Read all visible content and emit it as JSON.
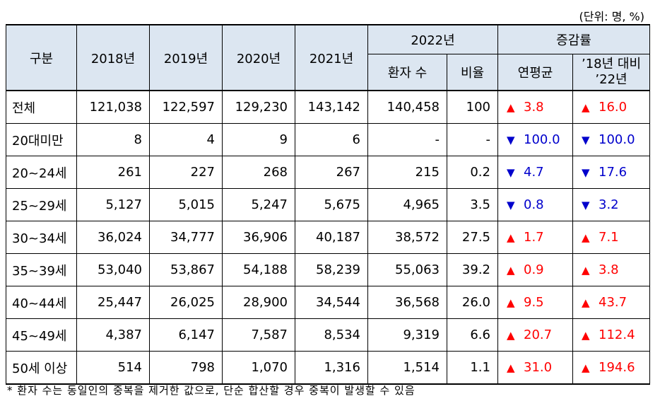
{
  "unit_note": "(단위: 명, %)",
  "header": {
    "category": "구분",
    "years": [
      "2018년",
      "2019년",
      "2020년",
      "2021년"
    ],
    "year_2022": "2022년",
    "patients": "환자 수",
    "ratio": "비율",
    "change": "증감률",
    "annual_avg": "연평균",
    "vs_line1": "’18년 대비",
    "vs_line2": "’22년"
  },
  "rows": [
    {
      "label": "전체",
      "y2018": "121,038",
      "y2019": "122,597",
      "y2020": "129,230",
      "y2021": "143,142",
      "y2022": "140,458",
      "ratio": "100",
      "avg_dir": "up",
      "avg": "3.8",
      "vs_dir": "up",
      "vs": "16.0"
    },
    {
      "label": "20대미만",
      "y2018": "8",
      "y2019": "4",
      "y2020": "9",
      "y2021": "6",
      "y2022": "-",
      "ratio": "-",
      "avg_dir": "down",
      "avg": "100.0",
      "vs_dir": "down",
      "vs": "100.0"
    },
    {
      "label": "20~24세",
      "y2018": "261",
      "y2019": "227",
      "y2020": "268",
      "y2021": "267",
      "y2022": "215",
      "ratio": "0.2",
      "avg_dir": "down",
      "avg": "4.7",
      "vs_dir": "down",
      "vs": "17.6"
    },
    {
      "label": "25~29세",
      "y2018": "5,127",
      "y2019": "5,015",
      "y2020": "5,247",
      "y2021": "5,675",
      "y2022": "4,965",
      "ratio": "3.5",
      "avg_dir": "down",
      "avg": "0.8",
      "vs_dir": "down",
      "vs": "3.2"
    },
    {
      "label": "30~34세",
      "y2018": "36,024",
      "y2019": "34,777",
      "y2020": "36,906",
      "y2021": "40,187",
      "y2022": "38,572",
      "ratio": "27.5",
      "avg_dir": "up",
      "avg": "1.7",
      "vs_dir": "up",
      "vs": "7.1"
    },
    {
      "label": "35~39세",
      "y2018": "53,040",
      "y2019": "53,867",
      "y2020": "54,188",
      "y2021": "58,239",
      "y2022": "55,063",
      "ratio": "39.2",
      "avg_dir": "up",
      "avg": "0.9",
      "vs_dir": "up",
      "vs": "3.8"
    },
    {
      "label": "40~44세",
      "y2018": "25,447",
      "y2019": "26,025",
      "y2020": "28,900",
      "y2021": "34,544",
      "y2022": "36,568",
      "ratio": "26.0",
      "avg_dir": "up",
      "avg": "9.5",
      "vs_dir": "up",
      "vs": "43.7"
    },
    {
      "label": "45~49세",
      "y2018": "4,387",
      "y2019": "6,147",
      "y2020": "7,587",
      "y2021": "8,534",
      "y2022": "9,319",
      "ratio": "6.6",
      "avg_dir": "up",
      "avg": "20.7",
      "vs_dir": "up",
      "vs": "112.4"
    },
    {
      "label": "50세 이상",
      "y2018": "514",
      "y2019": "798",
      "y2020": "1,070",
      "y2021": "1,316",
      "y2022": "1,514",
      "ratio": "1.1",
      "avg_dir": "up",
      "avg": "31.0",
      "vs_dir": "up",
      "vs": "194.6"
    }
  ],
  "symbols": {
    "up": "▲",
    "down": "▼"
  },
  "colors": {
    "header_bg": "#dce6f1",
    "increase": "#ff0000",
    "decrease": "#0000cc"
  },
  "footnote": "* 환자 수는 동일인의 중복을 제거한 값으로, 단순 합산할 경우 중복이 발생할 수 있음"
}
